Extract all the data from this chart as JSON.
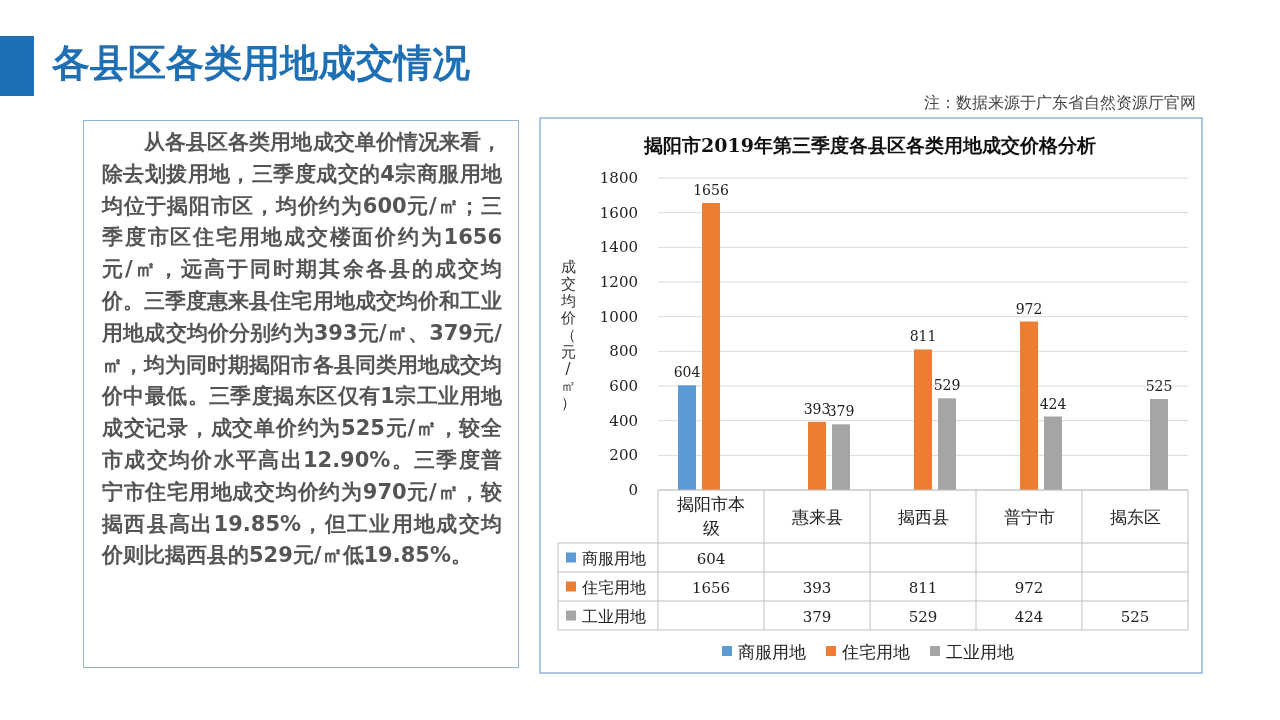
{
  "chart_data": {
    "type": "bar",
    "title": "揭阳市2019年第三季度各县区各类用地成交价格分析",
    "ylabel": "成交均价（元/㎡）",
    "categories": [
      "揭阳市本级",
      "惠来县",
      "揭西县",
      "普宁市",
      "揭东区"
    ],
    "series": [
      {
        "name": "商服用地",
        "color": "#5b9bd5",
        "values": [
          604,
          null,
          null,
          null,
          null
        ],
        "value_labels": [
          "604",
          null,
          null,
          null,
          null
        ]
      },
      {
        "name": "住宅用地",
        "color": "#ed7d31",
        "values": [
          1656,
          393,
          811,
          972,
          null
        ],
        "value_labels": [
          "1656",
          "393",
          "811",
          "972",
          null
        ]
      },
      {
        "name": "工业用地",
        "color": "#a5a5a5",
        "values": [
          null,
          379,
          529,
          424,
          525
        ],
        "value_labels": [
          null,
          "379",
          "529",
          "424",
          "525"
        ]
      }
    ],
    "ylim": [
      0,
      1800
    ],
    "yticks": [
      0,
      200,
      400,
      600,
      800,
      1000,
      1200,
      1400,
      1600,
      1800
    ],
    "grid": "y",
    "legend": "bottom",
    "data_labels": true,
    "annotations": [
      "各县区各类用地成交情况",
      "注：数据来源于广东省自然资源厅官网",
      "从各县区各类用地成交单价情况来看，除去划拨用地，三季度成交的4宗商服用地均位于揭阳市区，均价约为600元/㎡；三季度市区住宅用地成交楼面价约为1656元/㎡，远高于同时期其余各县的成交均价。三季度惠来县住宅用地成交均价和工业用地成交均价分别约为393元/㎡、379元/㎡，均为同时期揭阳市各县同类用地成交均价中最低。三季度揭东区仅有1宗工业用地成交记录，成交单价约为525元/㎡，较全市成交均价水平高出12.90%。三季度普宁市住宅用地成交均价约为970元/㎡，较揭西县高出19.85%，但工业用地成交均价则比揭西县的529元/㎡低19.85%。"
    ]
  }
}
